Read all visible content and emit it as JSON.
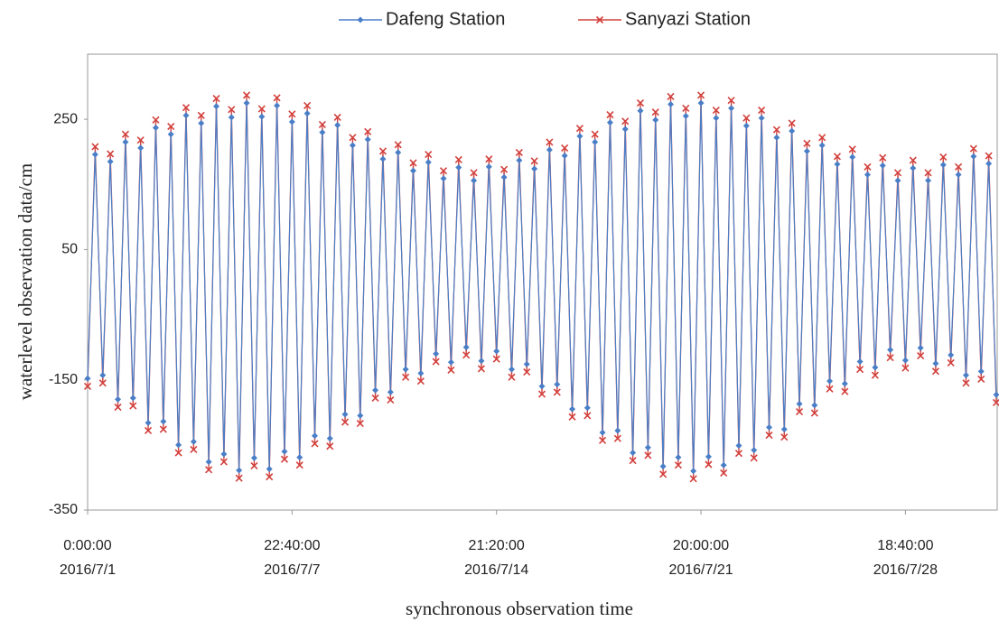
{
  "chart_data": {
    "type": "line",
    "x_label": "synchronous observation time",
    "y_label": "waterlevel  observation  data/cm",
    "categories": [
      [
        "0:00:00",
        "2016/7/1"
      ],
      null,
      null,
      null,
      null,
      null,
      null,
      null,
      null,
      null,
      null,
      null,
      null,
      null,
      null,
      null,
      null,
      null,
      null,
      null,
      null,
      null,
      null,
      null,
      null,
      null,
      null,
      [
        "22:40:00",
        "2016/7/7"
      ],
      null,
      null,
      null,
      null,
      null,
      null,
      null,
      null,
      null,
      null,
      null,
      null,
      null,
      null,
      null,
      null,
      null,
      null,
      null,
      null,
      null,
      null,
      null,
      null,
      null,
      null,
      [
        "21:20:00",
        "2016/7/14"
      ],
      null,
      null,
      null,
      null,
      null,
      null,
      null,
      null,
      null,
      null,
      null,
      null,
      null,
      null,
      null,
      null,
      null,
      null,
      null,
      null,
      null,
      null,
      null,
      null,
      null,
      null,
      [
        "20:00:00",
        "2016/7/21"
      ],
      null,
      null,
      null,
      null,
      null,
      null,
      null,
      null,
      null,
      null,
      null,
      null,
      null,
      null,
      null,
      null,
      null,
      null,
      null,
      null,
      null,
      null,
      null,
      null,
      null,
      null,
      [
        "18:40:00",
        "2016/7/28"
      ],
      null,
      null,
      null,
      null,
      null,
      null,
      null,
      null,
      null,
      null,
      null,
      null
    ],
    "series": [
      {
        "name": "Dafeng Station",
        "color": "#4a7fc8",
        "marker": "diamond",
        "values": [
          -148,
          196,
          -143,
          185,
          -180,
          215,
          -178,
          206,
          -216,
          237,
          -214,
          227,
          -250,
          256,
          -245,
          244,
          -276,
          270,
          -264,
          253,
          -289,
          275,
          -270,
          254,
          -287,
          271,
          -260,
          246,
          -269,
          259,
          -236,
          230,
          -240,
          241,
          -203,
          210,
          -205,
          219,
          -166,
          189,
          -169,
          199,
          -134,
          171,
          -140,
          184,
          -110,
          159,
          -123,
          176,
          -100,
          156,
          -121,
          177,
          -106,
          161,
          -134,
          187,
          -126,
          174,
          -160,
          203,
          -157,
          194,
          -195,
          224,
          -193,
          215,
          -231,
          245,
          -228,
          235,
          -262,
          263,
          -254,
          249,
          -283,
          273,
          -269,
          255,
          -290,
          275,
          -268,
          252,
          -281,
          267,
          -251,
          240,
          -258,
          252,
          -223,
          222,
          -226,
          232,
          -187,
          201,
          -189,
          210,
          -152,
          181,
          -156,
          192,
          -122,
          165,
          -131,
          179,
          -104,
          156,
          -120,
          175,
          -101,
          156,
          -125,
          180,
          -112,
          165,
          -143,
          193,
          -137,
          182,
          -173
        ]
      },
      {
        "name": "Sanyazi Station",
        "color": "#d2403c",
        "marker": "cross",
        "values": [
          -160,
          208,
          -155,
          197,
          -192,
          227,
          -190,
          218,
          -228,
          249,
          -226,
          239,
          -262,
          268,
          -257,
          256,
          -288,
          282,
          -276,
          265,
          -301,
          287,
          -282,
          266,
          -299,
          283,
          -272,
          258,
          -281,
          271,
          -248,
          242,
          -252,
          253,
          -215,
          222,
          -217,
          231,
          -178,
          201,
          -181,
          211,
          -146,
          183,
          -152,
          196,
          -122,
          171,
          -135,
          188,
          -112,
          168,
          -133,
          189,
          -118,
          173,
          -146,
          199,
          -138,
          186,
          -172,
          215,
          -169,
          206,
          -207,
          236,
          -205,
          227,
          -243,
          257,
          -240,
          247,
          -274,
          275,
          -266,
          261,
          -295,
          285,
          -281,
          267,
          -302,
          287,
          -280,
          264,
          -293,
          279,
          -263,
          252,
          -270,
          264,
          -235,
          234,
          -238,
          244,
          -199,
          213,
          -201,
          222,
          -164,
          193,
          -168,
          204,
          -134,
          177,
          -143,
          191,
          -116,
          168,
          -132,
          187,
          -113,
          168,
          -137,
          192,
          -124,
          177,
          -155,
          205,
          -149,
          194,
          -185
        ]
      }
    ],
    "ylim": [
      -350,
      350
    ],
    "yticks": [
      -350,
      -150,
      50,
      250
    ],
    "grid": false,
    "legend": "top"
  }
}
